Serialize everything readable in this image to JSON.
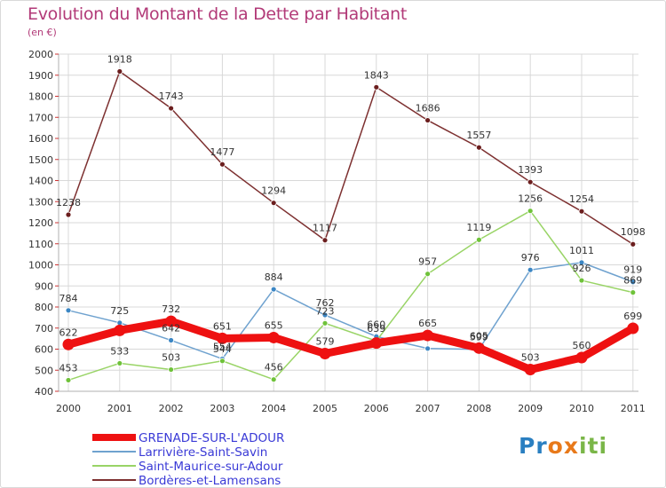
{
  "title": "Evolution du Montant de la Dette par Habitant",
  "subtitle": "(en €)",
  "logo": {
    "text": "Proxiti",
    "colors": [
      "#2a7fc1",
      "#2a7fc1",
      "#e8791a",
      "#e8791a",
      "#7ab648",
      "#7ab648",
      "#7ab648"
    ]
  },
  "chart_data": {
    "type": "line",
    "title": "Evolution du Montant de la Dette par Habitant",
    "subtitle": "(en €)",
    "x": [
      "2000",
      "2001",
      "2002",
      "2003",
      "2004",
      "2005",
      "2006",
      "2007",
      "2008",
      "2009",
      "2010",
      "2011"
    ],
    "ylim": [
      400,
      2000
    ],
    "y_ticks": [
      400,
      500,
      600,
      700,
      800,
      900,
      1000,
      1100,
      1200,
      1300,
      1400,
      1500,
      1600,
      1700,
      1800,
      1900,
      2000
    ],
    "grid": true,
    "legend_position": "bottom-left",
    "series": [
      {
        "name": "GRENADE-SUR-L'ADOUR",
        "color": "#ee1111",
        "marker_color": "#ee1111",
        "emphasis": true,
        "values": [
          622,
          689,
          732,
          651,
          655,
          579,
          629,
          665,
          605,
          503,
          560,
          699
        ],
        "labels": [
          "622",
          "",
          "732",
          "651",
          "655",
          "579",
          "",
          "665",
          "605",
          "503",
          "560",
          "699"
        ]
      },
      {
        "name": "Larrivière-Saint-Savin",
        "color": "#6fa2cf",
        "marker_color": "#3b86c4",
        "values": [
          784,
          725,
          642,
          554,
          884,
          762,
          660,
          603,
          599,
          976,
          1011,
          919
        ],
        "labels": [
          "784",
          "725",
          "642",
          "554",
          "884",
          "762",
          "660",
          "",
          "599",
          "976",
          "1011",
          "919"
        ]
      },
      {
        "name": "Saint-Maurice-sur-Adour",
        "color": "#99d466",
        "marker_color": "#6fc23a",
        "values": [
          453,
          533,
          503,
          544,
          456,
          723,
          639,
          957,
          1119,
          1256,
          926,
          869
        ],
        "labels": [
          "453",
          "533",
          "503",
          "544",
          "456",
          "723",
          "639",
          "957",
          "1119",
          "1256",
          "926",
          "869"
        ]
      },
      {
        "name": "Bordères-et-Lamensans",
        "color": "#7d3030",
        "marker_color": "#6b1e1e",
        "values": [
          1238,
          1918,
          1743,
          1477,
          1294,
          1117,
          1843,
          1686,
          1557,
          1393,
          1254,
          1098
        ],
        "labels": [
          "1238",
          "1918",
          "1743",
          "1477",
          "1294",
          "1117",
          "1843",
          "1686",
          "1557",
          "1393",
          "1254",
          "1098"
        ]
      }
    ]
  }
}
